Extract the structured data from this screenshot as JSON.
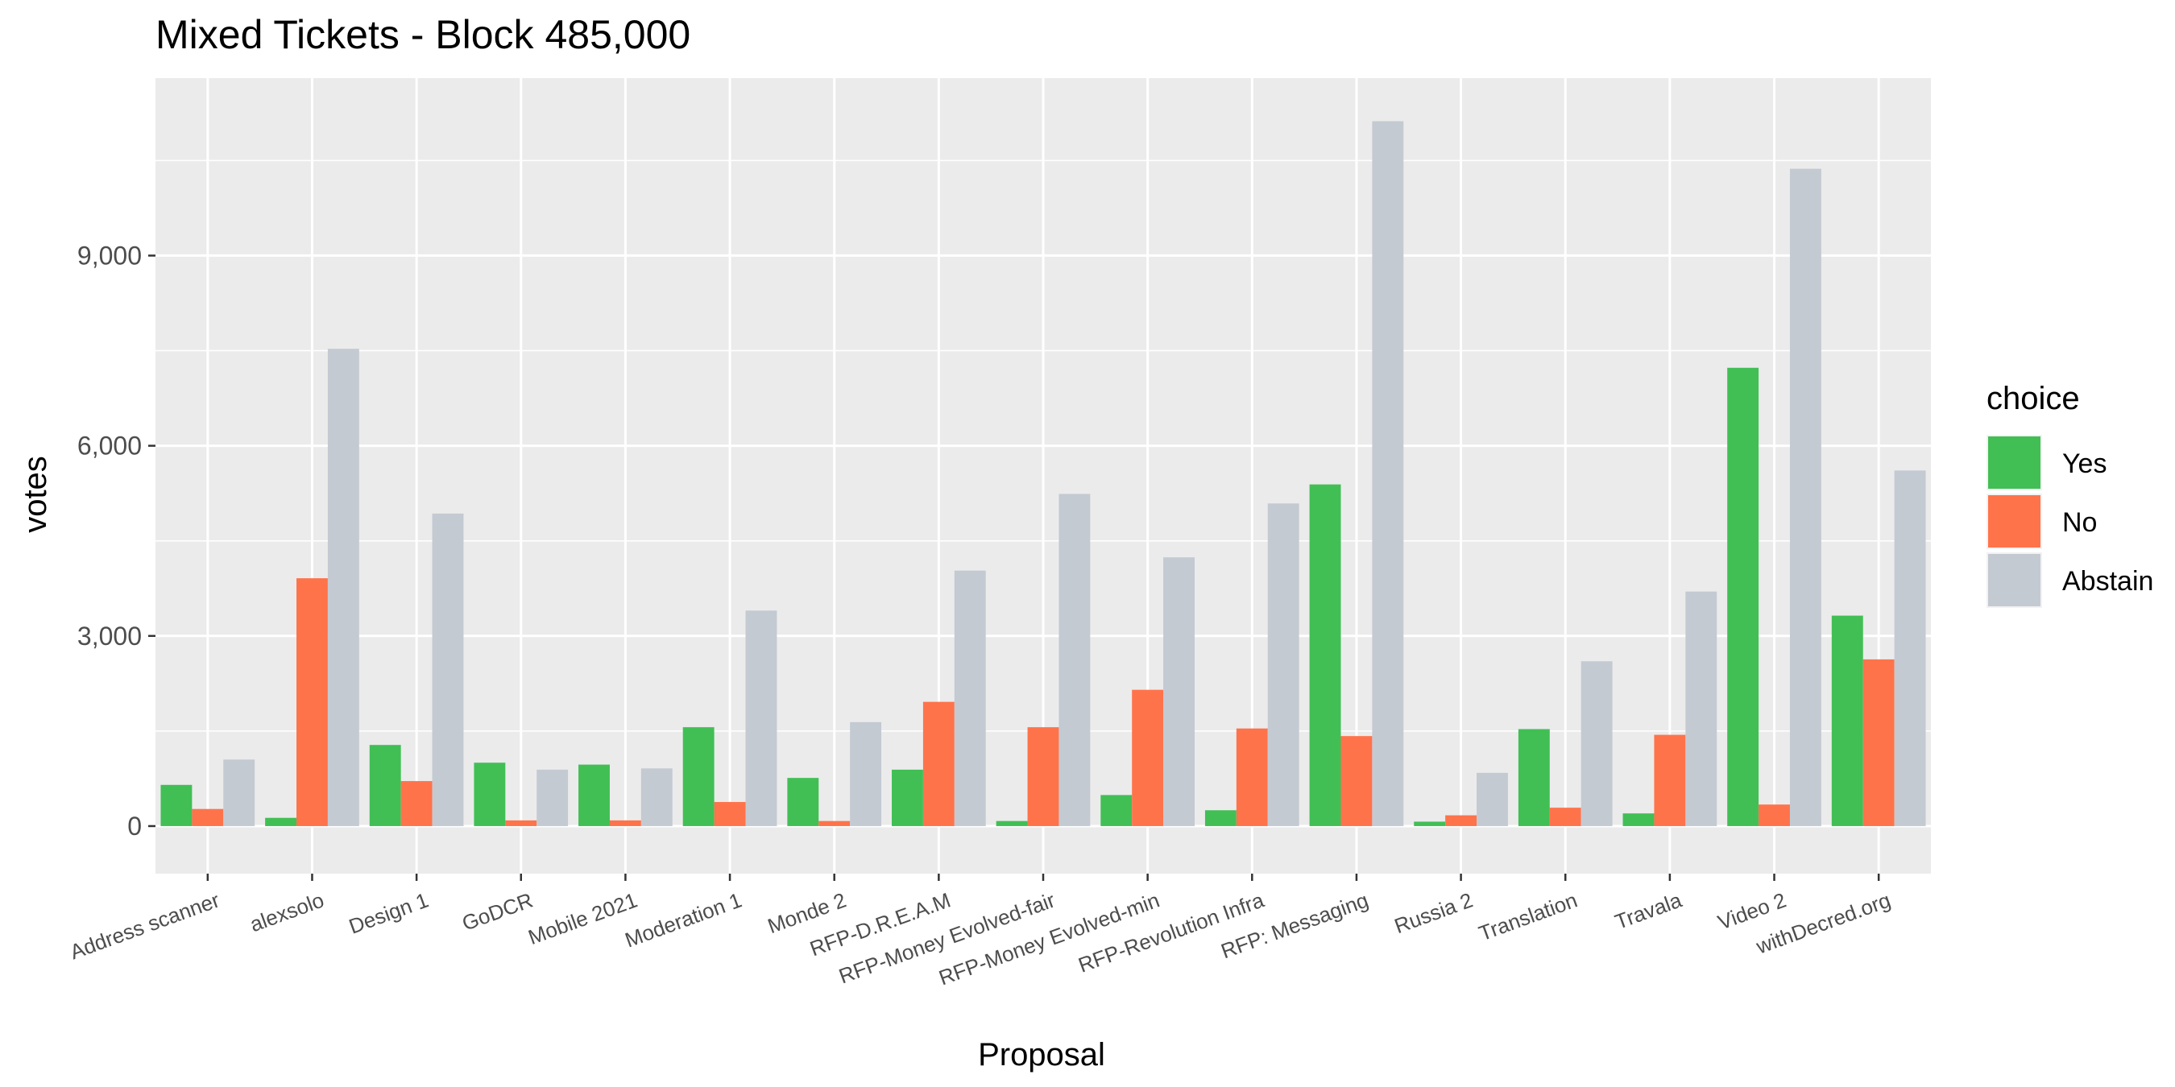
{
  "chart_data": {
    "type": "bar",
    "title": "Mixed Tickets - Block 485,000",
    "xlabel": "Proposal",
    "ylabel": "votes",
    "ylim": [
      -750,
      11800
    ],
    "yticks": [
      0,
      3000,
      6000,
      9000
    ],
    "ytick_labels": [
      "0",
      "3,000",
      "6,000",
      "9,000"
    ],
    "grid": true,
    "legend": {
      "title": "choice",
      "position": "right"
    },
    "categories": [
      "Address scanner",
      "alexsolo",
      "Design 1",
      "GoDCR",
      "Mobile 2021",
      "Moderation 1",
      "Monde 2",
      "RFP-D.R.E.A.M",
      "RFP-Money Evolved-fair",
      "RFP-Money Evolved-min",
      "RFP-Revolution Infra",
      "RFP: Messaging",
      "Russia 2",
      "Translation",
      "Travala",
      "Video 2",
      "withDecred.org"
    ],
    "series": [
      {
        "name": "Yes",
        "color": "#41BF55",
        "values": [
          650,
          130,
          1280,
          1000,
          970,
          1560,
          760,
          890,
          80,
          490,
          250,
          5390,
          70,
          1530,
          200,
          7230,
          3320
        ]
      },
      {
        "name": "No",
        "color": "#FF734B",
        "values": [
          270,
          3910,
          710,
          90,
          90,
          380,
          80,
          1960,
          1560,
          2150,
          1540,
          1420,
          170,
          290,
          1440,
          340,
          2630
        ]
      },
      {
        "name": "Abstain",
        "color": "#C4CAD2",
        "values": [
          1050,
          7530,
          4930,
          890,
          910,
          3400,
          1640,
          4030,
          5240,
          4240,
          5090,
          11120,
          840,
          2600,
          3700,
          10370,
          5610
        ]
      }
    ]
  }
}
